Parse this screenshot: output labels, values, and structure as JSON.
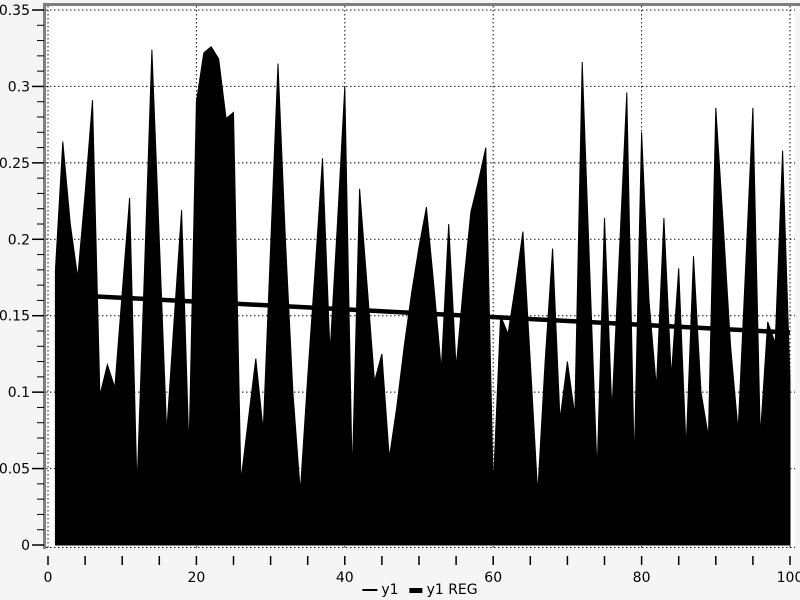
{
  "chart_data": {
    "type": "area",
    "title": "",
    "xlabel": "",
    "ylabel": "",
    "xlim": [
      0,
      100
    ],
    "ylim": [
      0,
      0.35
    ],
    "grid": "dotted-at-major-ticks",
    "legend_position": "bottom-center",
    "x_major_ticks": [
      0,
      20,
      40,
      60,
      80,
      100
    ],
    "x_tick_labels": [
      "0",
      "20",
      "40",
      "60",
      "80",
      "100"
    ],
    "x_minor_tick_step": 5,
    "y_major_ticks": [
      0,
      0.05,
      0.1,
      0.15,
      0.2,
      0.25,
      0.3,
      0.35
    ],
    "y_tick_labels": [
      "0",
      "0.05",
      "0.1",
      "0.15",
      "0.2",
      "0.25",
      "0.3",
      "0.35"
    ],
    "y_minor_tick_step": 0.01,
    "x": [
      1,
      2,
      3,
      4,
      5,
      6,
      7,
      8,
      9,
      10,
      11,
      12,
      13,
      14,
      15,
      16,
      17,
      18,
      19,
      20,
      21,
      22,
      23,
      24,
      25,
      26,
      27,
      28,
      29,
      30,
      31,
      32,
      33,
      34,
      35,
      36,
      37,
      38,
      39,
      40,
      41,
      42,
      43,
      44,
      45,
      46,
      47,
      48,
      49,
      50,
      51,
      52,
      53,
      54,
      55,
      56,
      57,
      58,
      59,
      60,
      61,
      62,
      63,
      64,
      65,
      66,
      67,
      68,
      69,
      70,
      71,
      72,
      73,
      74,
      75,
      76,
      77,
      78,
      79,
      80,
      81,
      82,
      83,
      84,
      85,
      86,
      87,
      88,
      89,
      90,
      91,
      92,
      93,
      94,
      95,
      96,
      97,
      98,
      99,
      100
    ],
    "series": [
      {
        "name": "y1",
        "type": "area",
        "color": "#000000",
        "values": [
          0.18,
          0.264,
          0.21,
          0.175,
          0.23,
          0.291,
          0.098,
          0.118,
          0.103,
          0.165,
          0.227,
          0.038,
          0.18,
          0.324,
          0.2,
          0.074,
          0.147,
          0.219,
          0.062,
          0.29,
          0.322,
          0.326,
          0.318,
          0.279,
          0.283,
          0.042,
          0.082,
          0.122,
          0.075,
          0.195,
          0.315,
          0.2,
          0.1,
          0.035,
          0.11,
          0.18,
          0.253,
          0.126,
          0.21,
          0.3,
          0.045,
          0.233,
          0.17,
          0.107,
          0.125,
          0.057,
          0.09,
          0.13,
          0.165,
          0.195,
          0.221,
          0.17,
          0.115,
          0.21,
          0.116,
          0.17,
          0.218,
          0.238,
          0.26,
          0.037,
          0.15,
          0.138,
          0.17,
          0.205,
          0.12,
          0.034,
          0.12,
          0.194,
          0.082,
          0.12,
          0.085,
          0.316,
          0.18,
          0.048,
          0.214,
          0.088,
          0.19,
          0.296,
          0.053,
          0.27,
          0.16,
          0.103,
          0.214,
          0.11,
          0.181,
          0.063,
          0.189,
          0.1,
          0.071,
          0.286,
          0.21,
          0.13,
          0.075,
          0.18,
          0.286,
          0.071,
          0.146,
          0.132,
          0.258,
          0.108
        ]
      },
      {
        "name": "y1 REG",
        "type": "line",
        "color": "#000000",
        "stroke_width": 4.5,
        "x": [
          1,
          100
        ],
        "values": [
          0.164,
          0.139
        ]
      }
    ]
  },
  "legend": {
    "items": [
      {
        "label": "y1",
        "swatch": "thin-line"
      },
      {
        "label": "y1 REG",
        "swatch": "thick-line"
      }
    ]
  },
  "colors": {
    "background": "#f5f5f5",
    "plot_background": "#ffffff",
    "axis_frame": "#7e7e7e",
    "grid": "#111111",
    "series": "#000000",
    "text": "#000000"
  }
}
